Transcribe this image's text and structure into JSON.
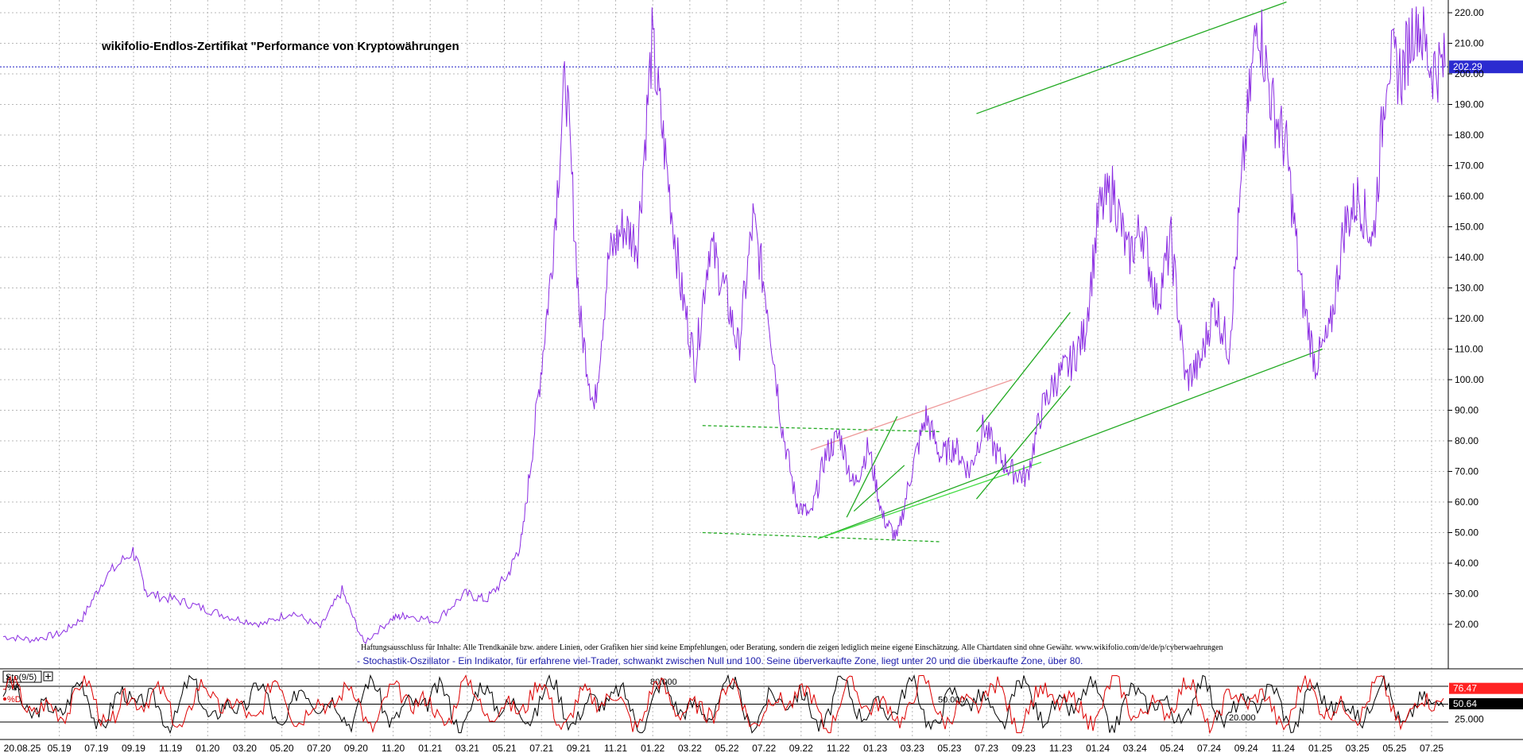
{
  "chart_data": [
    {
      "type": "line",
      "title": "wikifolio-Endlos-Zertifikat \"Performance von Kryptowährungen",
      "ylim": [
        10,
        223
      ],
      "yticks": [
        "20.00",
        "30.00",
        "40.00",
        "50.00",
        "60.00",
        "70.00",
        "80.00",
        "90.00",
        "100.00",
        "110.00",
        "120.00",
        "130.00",
        "140.00",
        "150.00",
        "160.00",
        "170.00",
        "180.00",
        "190.00",
        "200.00",
        "210.00",
        "220.00"
      ],
      "x_labels": [
        "20.08.25",
        "05.19",
        "07.19",
        "09.19",
        "11.19",
        "01.20",
        "03.20",
        "05.20",
        "07.20",
        "09.20",
        "11.20",
        "01.21",
        "03.21",
        "05.21",
        "07.21",
        "09.21",
        "11.21",
        "01.22",
        "03.22",
        "05.22",
        "07.22",
        "09.22",
        "11.22",
        "01.23",
        "03.23",
        "05.23",
        "07.23",
        "09.23",
        "11.23",
        "01.24",
        "03.24",
        "05.24",
        "07.24",
        "09.24",
        "11.24",
        "01.25",
        "03.25",
        "05.25",
        "07.25"
      ],
      "grid": true,
      "last_value": "202.29",
      "last_value_level": 202.29,
      "series": [
        {
          "color": "#8a2be2",
          "x": [
            0,
            0.02,
            0.04,
            0.055,
            0.07,
            0.09,
            0.1,
            0.12,
            0.14,
            0.16,
            0.18,
            0.2,
            0.22,
            0.235,
            0.25,
            0.27,
            0.28,
            0.3,
            0.32,
            0.335,
            0.35,
            0.36,
            0.37,
            0.38,
            0.39,
            0.4,
            0.41,
            0.42,
            0.43,
            0.44,
            0.45,
            0.46,
            0.47,
            0.48,
            0.49,
            0.5,
            0.51,
            0.52,
            0.53,
            0.54,
            0.55,
            0.56,
            0.57,
            0.58,
            0.59,
            0.6,
            0.61,
            0.62,
            0.63,
            0.64,
            0.65,
            0.66,
            0.67,
            0.68,
            0.69,
            0.7,
            0.71,
            0.72,
            0.73,
            0.74,
            0.75,
            0.76,
            0.77,
            0.78,
            0.79,
            0.8,
            0.81,
            0.82,
            0.83,
            0.84,
            0.85,
            0.86,
            0.87,
            0.88,
            0.89,
            0.9,
            0.91,
            0.92,
            0.93,
            0.94,
            0.95,
            0.96,
            0.97,
            0.98,
            0.99,
            1.0
          ],
          "y": [
            16,
            15,
            17,
            22,
            35,
            44,
            30,
            28,
            25,
            22,
            20,
            24,
            19,
            31,
            14,
            22,
            23,
            21,
            30,
            28,
            36,
            48,
            90,
            135,
            200,
            120,
            90,
            140,
            150,
            145,
            210,
            170,
            130,
            105,
            145,
            130,
            110,
            152,
            125,
            85,
            60,
            55,
            75,
            82,
            65,
            78,
            55,
            48,
            70,
            88,
            75,
            78,
            70,
            85,
            75,
            70,
            68,
            90,
            100,
            105,
            115,
            155,
            162,
            140,
            150,
            125,
            145,
            100,
            105,
            125,
            110,
            170,
            220,
            190,
            175,
            130,
            105,
            115,
            150,
            160,
            145,
            205,
            200,
            220,
            202.29,
            202.29
          ]
        }
      ],
      "annotations": [
        {
          "label": "Haftungsausschluss für Inhalte: Alle Trendkanäle bzw. andere Linien, oder Grafiken hier sind keine Empfehlungen, oder Beratung, sondern die zeigen lediglich meine eigene Einschätzung. Alle Chartdaten sind ohne Gewähr.  www.wikifolio.com/de/de/p/cyberwaehrungen"
        }
      ],
      "trendlines": [
        {
          "color": "#22aa22",
          "style": "solid",
          "x1": 0.675,
          "y1": 187,
          "x2": 0.89,
          "y2": 223.5
        },
        {
          "color": "#22aa22",
          "style": "solid",
          "x1": 0.565,
          "y1": 48,
          "x2": 0.915,
          "y2": 110
        },
        {
          "color": "#44dd44",
          "style": "solid",
          "x1": 0.565,
          "y1": 48,
          "x2": 0.72,
          "y2": 73
        },
        {
          "color": "#22aa22",
          "style": "dashed",
          "x1": 0.485,
          "y1": 85,
          "x2": 0.65,
          "y2": 83
        },
        {
          "color": "#22aa22",
          "style": "dashed",
          "x1": 0.485,
          "y1": 50,
          "x2": 0.65,
          "y2": 47
        },
        {
          "color": "#ee9999",
          "style": "solid",
          "x1": 0.56,
          "y1": 77,
          "x2": 0.7,
          "y2": 100
        },
        {
          "color": "#22aa22",
          "style": "solid",
          "x1": 0.585,
          "y1": 55,
          "x2": 0.62,
          "y2": 88
        },
        {
          "color": "#22aa22",
          "style": "solid",
          "x1": 0.59,
          "y1": 57,
          "x2": 0.625,
          "y2": 72
        },
        {
          "color": "#22aa22",
          "style": "solid",
          "x1": 0.675,
          "y1": 83,
          "x2": 0.74,
          "y2": 122
        },
        {
          "color": "#22aa22",
          "style": "solid",
          "x1": 0.675,
          "y1": 61,
          "x2": 0.74,
          "y2": 98
        }
      ]
    },
    {
      "type": "line",
      "indicator": "Sto(9/5)",
      "description": "- Stochastik-Oszillator - Ein Indikator, für erfahrene viel-Trader, schwankt zwischen Null und 100. Seine überverkaufte Zone, liegt unter 20 und die überkaufte Zone, über 80.",
      "ylim": [
        0,
        100
      ],
      "levels": [
        {
          "value": 80,
          "label": "80.000"
        },
        {
          "value": 50,
          "label": "50.000"
        },
        {
          "value": 20,
          "label": "20.000"
        }
      ],
      "ytick": "25.000",
      "series": [
        {
          "name": "%K",
          "color": "#000000",
          "last_value": "50.64",
          "last_value_level": 50.64
        },
        {
          "name": "%D",
          "color": "#dd0000",
          "last_value": "76.47",
          "last_value_level": 76.47
        }
      ]
    }
  ],
  "ui": {
    "indicator_tab": "Sto(9/5)",
    "plus_icon": "plus-square-icon",
    "k_label": "%K",
    "d_label": "%D",
    "red_dot_icon": "dot-icon",
    "grid_color": "#b8b8b8",
    "last_line_color": "#3333cc"
  }
}
